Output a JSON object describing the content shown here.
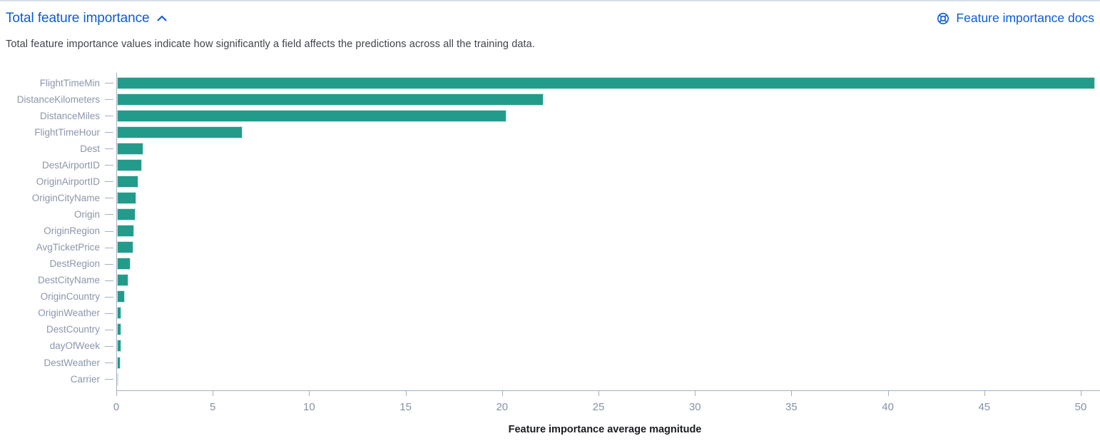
{
  "header": {
    "title": "Total feature importance",
    "docs_link_label": "Feature importance docs"
  },
  "description": "Total feature importance values indicate how significantly a field affects the predictions across all the training data.",
  "icons": {
    "collapse": "chevron-up-icon",
    "docs": "lifebuoy-help-icon"
  },
  "colors": {
    "link_blue": "#0d5cd1",
    "bar_green": "#239b8a",
    "axis_line": "#a7aec4",
    "tick_label": "#8591a7",
    "y_label": "#8c96ab"
  },
  "chart_data": {
    "type": "bar",
    "orientation": "horizontal",
    "title": "Total feature importance",
    "xlabel": "Feature importance average magnitude",
    "ylabel": "",
    "xlim": [
      0,
      51
    ],
    "x_ticks": [
      0,
      5,
      10,
      15,
      20,
      25,
      30,
      35,
      40,
      45,
      50
    ],
    "grid": false,
    "legend": false,
    "categories": [
      "FlightTimeMin",
      "DistanceKilometers",
      "DistanceMiles",
      "FlightTimeHour",
      "Dest",
      "DestAirportID",
      "OriginAirportID",
      "OriginCityName",
      "Origin",
      "OriginRegion",
      "AvgTicketPrice",
      "DestRegion",
      "DestCityName",
      "OriginCountry",
      "OriginWeather",
      "DestCountry",
      "dayOfWeek",
      "DestWeather",
      "Carrier"
    ],
    "values": [
      50.7,
      22.1,
      20.2,
      6.5,
      1.35,
      1.3,
      1.1,
      1.0,
      0.95,
      0.9,
      0.85,
      0.72,
      0.6,
      0.4,
      0.23,
      0.22,
      0.21,
      0.17,
      0.07
    ]
  }
}
